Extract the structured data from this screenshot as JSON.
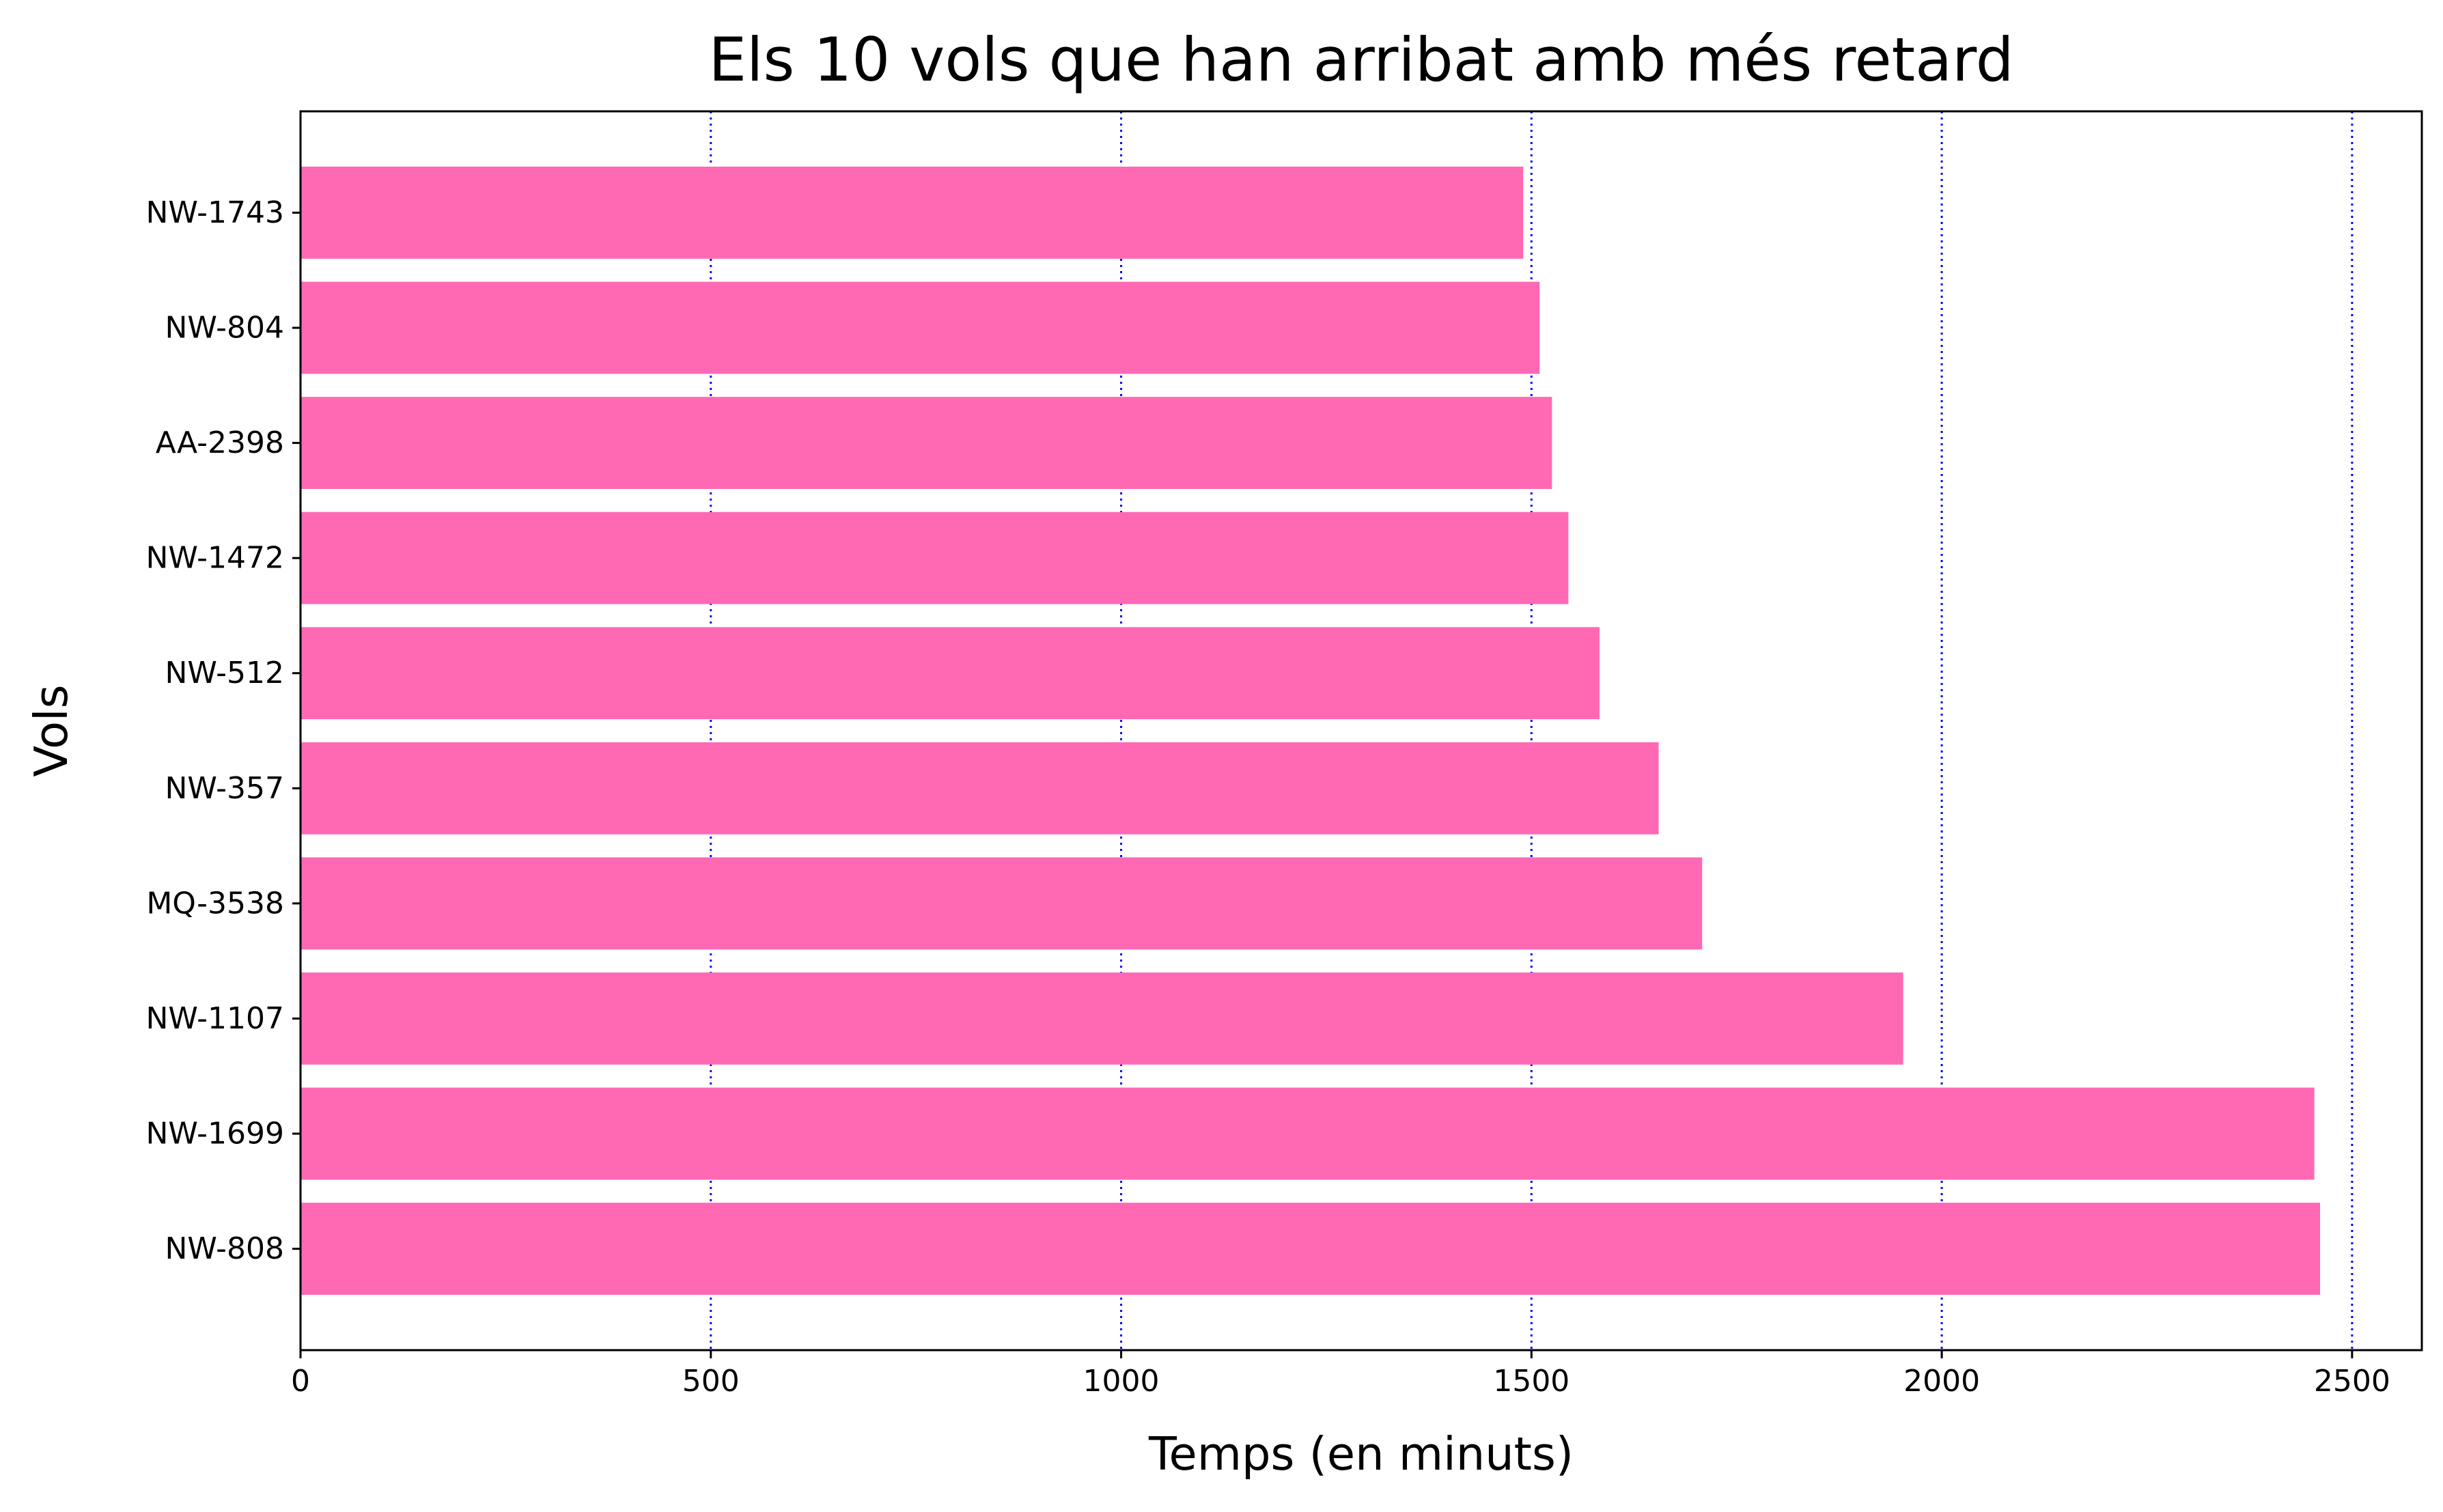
{
  "chart_data": {
    "type": "bar",
    "orientation": "horizontal",
    "title": "Els 10 vols que han arribat amb més retard",
    "xlabel": "Temps (en minuts)",
    "ylabel": "Vols",
    "categories": [
      "NW-1743",
      "NW-804",
      "AA-2398",
      "NW-1472",
      "NW-512",
      "NW-357",
      "MQ-3538",
      "NW-1107",
      "NW-1699",
      "NW-808"
    ],
    "values": [
      1490,
      1510,
      1525,
      1545,
      1583,
      1655,
      1708,
      1953,
      2454,
      2461
    ],
    "xlim": [
      0,
      2585
    ],
    "xticks": [
      0,
      500,
      1000,
      1500,
      2000,
      2500
    ],
    "grid": {
      "axis": "x",
      "style": "dotted",
      "color": "#0000ff"
    },
    "colors": {
      "bar": "#ff69b4",
      "grid": "#0000ff",
      "axis": "#000000"
    }
  }
}
